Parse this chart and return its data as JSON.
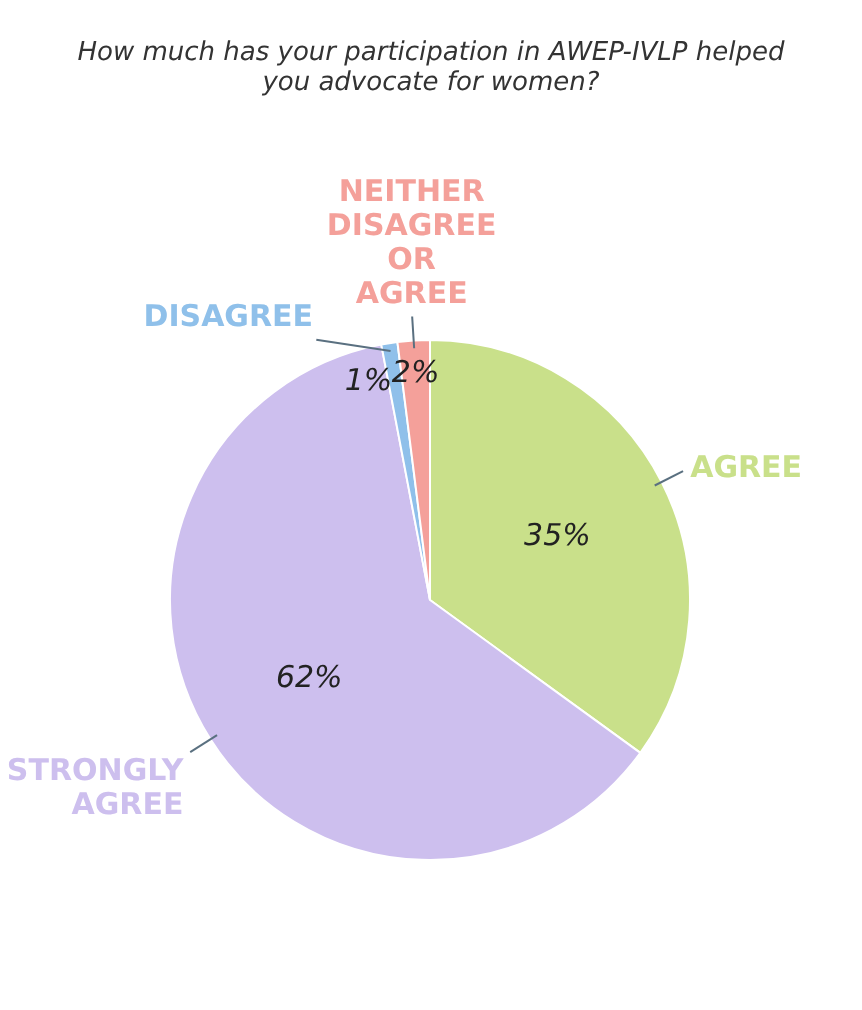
{
  "chart_data": {
    "type": "pie",
    "title": "How much has your participation in AWEP-IVLP helped you advocate for women?",
    "categories": [
      "AGREE",
      "STRONGLY AGREE",
      "DISAGREE",
      "NEITHER DISAGREE OR AGREE"
    ],
    "values": [
      35,
      62,
      1,
      2
    ],
    "value_labels": [
      "35%",
      "62%",
      "1%",
      "2%"
    ],
    "colors": [
      "#c9e08a",
      "#cdbfee",
      "#8fc0ea",
      "#f4a09a"
    ]
  }
}
